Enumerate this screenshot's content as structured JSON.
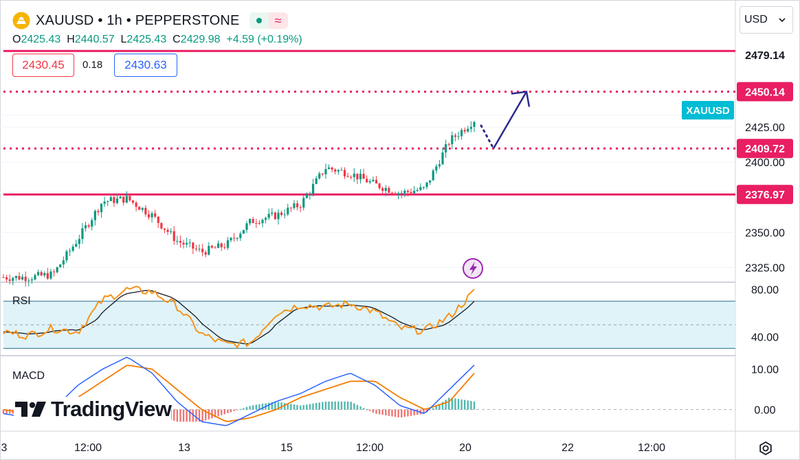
{
  "header": {
    "symbol": "XAUUSD",
    "timeframe": "1h",
    "exchange": "PEPPERSTONE",
    "sep": "•",
    "icons": [
      "gold-bars-icon",
      "market-open-dot-icon",
      "wave-icon"
    ]
  },
  "ohlc": {
    "o_label": "O",
    "o": "2425.43",
    "h_label": "H",
    "h": "2440.57",
    "l_label": "L",
    "l": "2425.43",
    "c_label": "C",
    "c": "2429.98",
    "change": "+4.59 (+0.19%)"
  },
  "quote": {
    "bid": "2430.45",
    "spread": "0.18",
    "ask": "2430.63"
  },
  "currency": {
    "value": "USD",
    "icon": "chevron-down-icon"
  },
  "symbol_tag": "XAUUSD",
  "price_axis": {
    "ticks": [
      "2425.00",
      "2400.00",
      "2350.00",
      "2325.00"
    ],
    "top_partial": "2479.14"
  },
  "levels": [
    {
      "name": "top-line",
      "price": 2479.14,
      "label": "",
      "style": "solid"
    },
    {
      "name": "target",
      "price": 2450.14,
      "label": "2450.14",
      "style": "dotted"
    },
    {
      "name": "pivot",
      "price": 2409.72,
      "label": "2409.72",
      "style": "dotted"
    },
    {
      "name": "support",
      "price": 2376.97,
      "label": "2376.97",
      "style": "solid"
    }
  ],
  "rsi": {
    "label": "RSI",
    "ticks": [
      "80.00",
      "40.00"
    ],
    "band": [
      30,
      70
    ]
  },
  "macd": {
    "label": "MACD",
    "ticks": [
      "10.00",
      "0.00"
    ]
  },
  "time_axis": [
    "3",
    "12:00",
    "13",
    "15",
    "12:00",
    "20",
    "22",
    "12:00"
  ],
  "logo": {
    "text": "TradingView"
  },
  "colors": {
    "up": "#089981",
    "down": "#f23645",
    "level": "#e91e63",
    "arrow": "#2a2a8c",
    "rsi": "#f7931a",
    "rsi_ma": "#131722",
    "rsi_band": "#e0f3f8",
    "macd": "#2962ff",
    "signal": "#f57c00",
    "symbol_tag": "#00bcd4"
  },
  "chart_data": {
    "type": "line",
    "description_type": "candlestick",
    "instrument": "XAUUSD 1h",
    "x": [
      "3",
      "12:00",
      "13",
      "15",
      "12:00",
      "20",
      "22",
      "12:00"
    ],
    "price_close_anchors": [
      2318,
      2318,
      2320,
      2345,
      2372,
      2374,
      2362,
      2344,
      2336,
      2341,
      2358,
      2362,
      2370,
      2396,
      2392,
      2384,
      2378,
      2381,
      2415,
      2429.98
    ],
    "rsi_anchors": [
      44,
      41,
      47,
      44,
      71,
      80,
      78,
      66,
      42,
      33,
      35,
      60,
      67,
      65,
      68,
      61,
      47,
      45,
      57,
      78
    ],
    "macd_anchors": [
      -1,
      -2,
      0,
      6,
      10,
      13,
      9,
      2,
      -3,
      -4,
      -1,
      2,
      4,
      7,
      9,
      6,
      1,
      -1,
      5,
      11
    ],
    "signal_anchors": [
      0,
      -1,
      -1,
      3,
      7,
      11,
      10,
      5,
      0,
      -3,
      -2,
      0,
      3,
      5,
      7,
      7,
      3,
      0,
      2,
      9
    ],
    "ylim_price": [
      2315,
      2490
    ],
    "ylim_rsi": [
      25,
      85
    ],
    "ylim_macd": [
      -5,
      13
    ]
  }
}
